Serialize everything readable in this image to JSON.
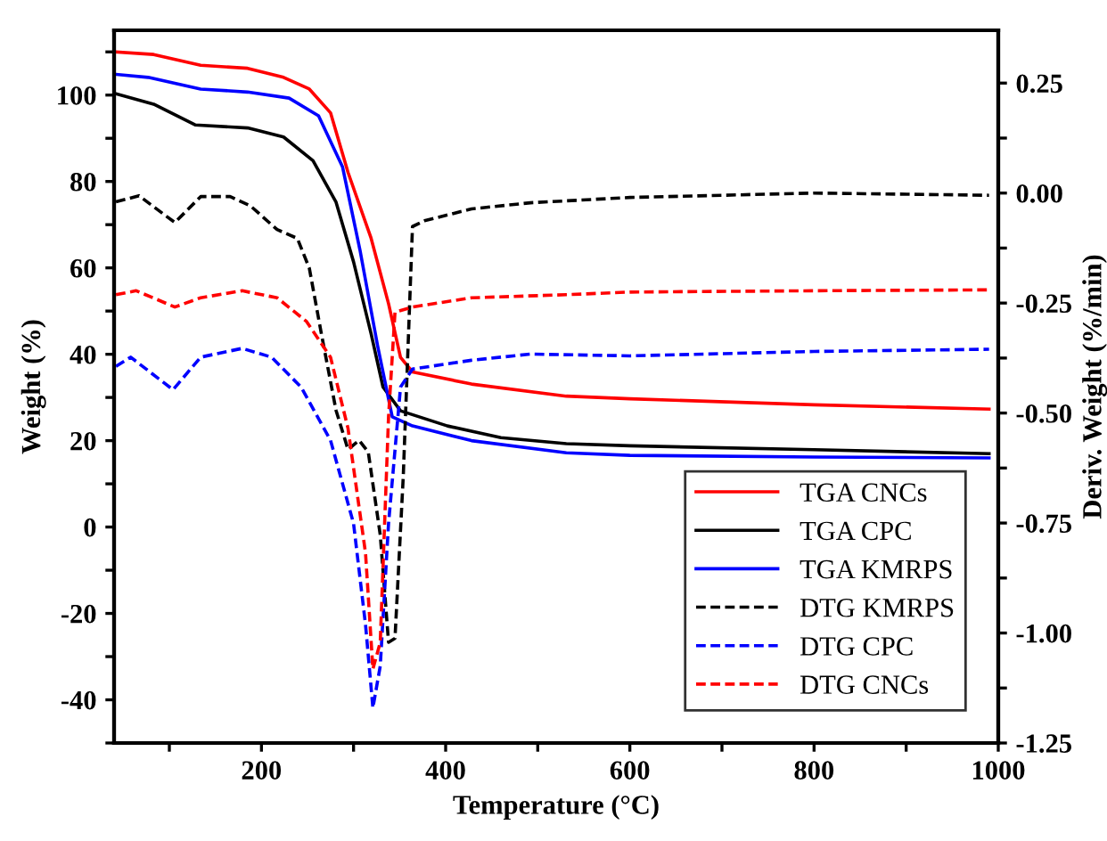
{
  "chart_data": {
    "type": "line",
    "xlabel": "Temperature (°C)",
    "ylabel": "Weight (%)",
    "y2label": "Deriv. Weight (%/min)",
    "xlim": [
      40,
      1000
    ],
    "xticks": [
      {
        "value": 100,
        "label": null
      },
      200,
      {
        "value": 300,
        "label": null
      },
      400,
      {
        "value": 500,
        "label": null
      },
      600,
      {
        "value": 700,
        "label": null
      },
      800,
      {
        "value": 900,
        "label": null
      },
      1000
    ],
    "ylim": [
      -50,
      115
    ],
    "yticks": [
      {
        "value": -50,
        "label": null
      },
      -40,
      {
        "value": -30,
        "label": null
      },
      -20,
      {
        "value": -10,
        "label": null
      },
      0,
      {
        "value": 10,
        "label": null
      },
      20,
      {
        "value": 30,
        "label": null
      },
      40,
      {
        "value": 50,
        "label": null
      },
      60,
      {
        "value": 70,
        "label": null
      },
      80,
      {
        "value": 90,
        "label": null
      },
      100,
      {
        "value": 110,
        "label": null
      }
    ],
    "y2lim": [
      -1.25,
      0.37
    ],
    "y2ticks": [
      -1.25,
      {
        "value": -1.125,
        "label": null
      },
      {
        "value": -1.0,
        "label": "-1.00"
      },
      {
        "value": -0.875,
        "label": null
      },
      -0.75,
      {
        "value": -0.625,
        "label": null
      },
      {
        "value": -0.5,
        "label": "-0.50"
      },
      {
        "value": -0.375,
        "label": null
      },
      -0.25,
      {
        "value": -0.125,
        "label": null
      },
      {
        "value": 0.0,
        "label": "0.00"
      },
      {
        "value": 0.125,
        "label": null
      },
      0.25
    ],
    "grid": false,
    "legend": "bottom right",
    "series": [
      {
        "name": "TGA CNCs",
        "color": "#ff0000",
        "line_style": "solid",
        "x": [
          42,
          83,
          134,
          185,
          224,
          252,
          275,
          294,
          319,
          338,
          351,
          364,
          428,
          531,
          600,
          800,
          990
        ],
        "values": [
          110,
          109.4,
          106.9,
          106.2,
          104.1,
          101.4,
          95.9,
          82.1,
          66.9,
          51.7,
          39.3,
          35.9,
          33.1,
          30.3,
          29.7,
          28.3,
          27.3
        ]
      },
      {
        "name": "TGA CPC",
        "color": "#000000",
        "line_style": "solid",
        "x": [
          42,
          83,
          128,
          185,
          224,
          256,
          281,
          300,
          319,
          332,
          351,
          402,
          460,
          531,
          600,
          800,
          990
        ],
        "values": [
          100.3,
          97.9,
          93.1,
          92.4,
          90.3,
          84.8,
          75.2,
          61.4,
          44.8,
          32.4,
          26.9,
          23.4,
          20.7,
          19.3,
          18.8,
          17.9,
          17.0
        ]
      },
      {
        "name": "TGA KMRPS",
        "color": "#0000ff",
        "line_style": "solid",
        "x": [
          42,
          77,
          134,
          185,
          230,
          262,
          288,
          307,
          326,
          342,
          364,
          428,
          531,
          600,
          800,
          990
        ],
        "values": [
          104.8,
          104.1,
          101.4,
          100.7,
          99.3,
          95.2,
          83.4,
          64.1,
          42.1,
          25.5,
          23.4,
          20,
          17.2,
          16.6,
          16.2,
          16.0
        ]
      },
      {
        "name": "DTG KMRPS",
        "color": "#000000",
        "line_style": "dashed",
        "axis": "y2",
        "x": [
          42,
          67,
          106,
          134,
          166,
          188,
          217,
          239,
          252,
          265,
          281,
          294,
          306,
          316,
          329,
          338,
          345,
          354,
          364,
          377,
          428,
          492,
          600,
          800,
          990
        ],
        "values": [
          -0.02,
          -0.006,
          -0.067,
          -0.008,
          -0.008,
          -0.029,
          -0.083,
          -0.103,
          -0.171,
          -0.319,
          -0.494,
          -0.583,
          -0.562,
          -0.589,
          -0.777,
          -1.021,
          -1.012,
          -0.643,
          -0.076,
          -0.063,
          -0.036,
          -0.022,
          -0.01,
          0.0,
          -0.005
        ]
      },
      {
        "name": "DTG CPC",
        "color": "#0000ff",
        "line_style": "dashed",
        "axis": "y2",
        "x": [
          42,
          58,
          104,
          134,
          179,
          211,
          243,
          275,
          300,
          313,
          321,
          329,
          338,
          351,
          364,
          428,
          492,
          600,
          800,
          990
        ],
        "values": [
          -0.394,
          -0.373,
          -0.447,
          -0.373,
          -0.353,
          -0.373,
          -0.441,
          -0.562,
          -0.751,
          -0.981,
          -1.17,
          -1.075,
          -0.751,
          -0.441,
          -0.4,
          -0.38,
          -0.366,
          -0.37,
          -0.36,
          -0.355
        ]
      },
      {
        "name": "DTG CNCs",
        "color": "#ff0000",
        "line_style": "dashed",
        "axis": "y2",
        "x": [
          42,
          64,
          106,
          134,
          179,
          217,
          249,
          275,
          294,
          313,
          321,
          329,
          338,
          345,
          364,
          428,
          531,
          600,
          800,
          990
        ],
        "values": [
          -0.231,
          -0.222,
          -0.259,
          -0.238,
          -0.222,
          -0.238,
          -0.292,
          -0.373,
          -0.535,
          -0.818,
          -1.082,
          -1.021,
          -0.508,
          -0.271,
          -0.259,
          -0.238,
          -0.231,
          -0.225,
          -0.222,
          -0.22
        ]
      }
    ]
  }
}
